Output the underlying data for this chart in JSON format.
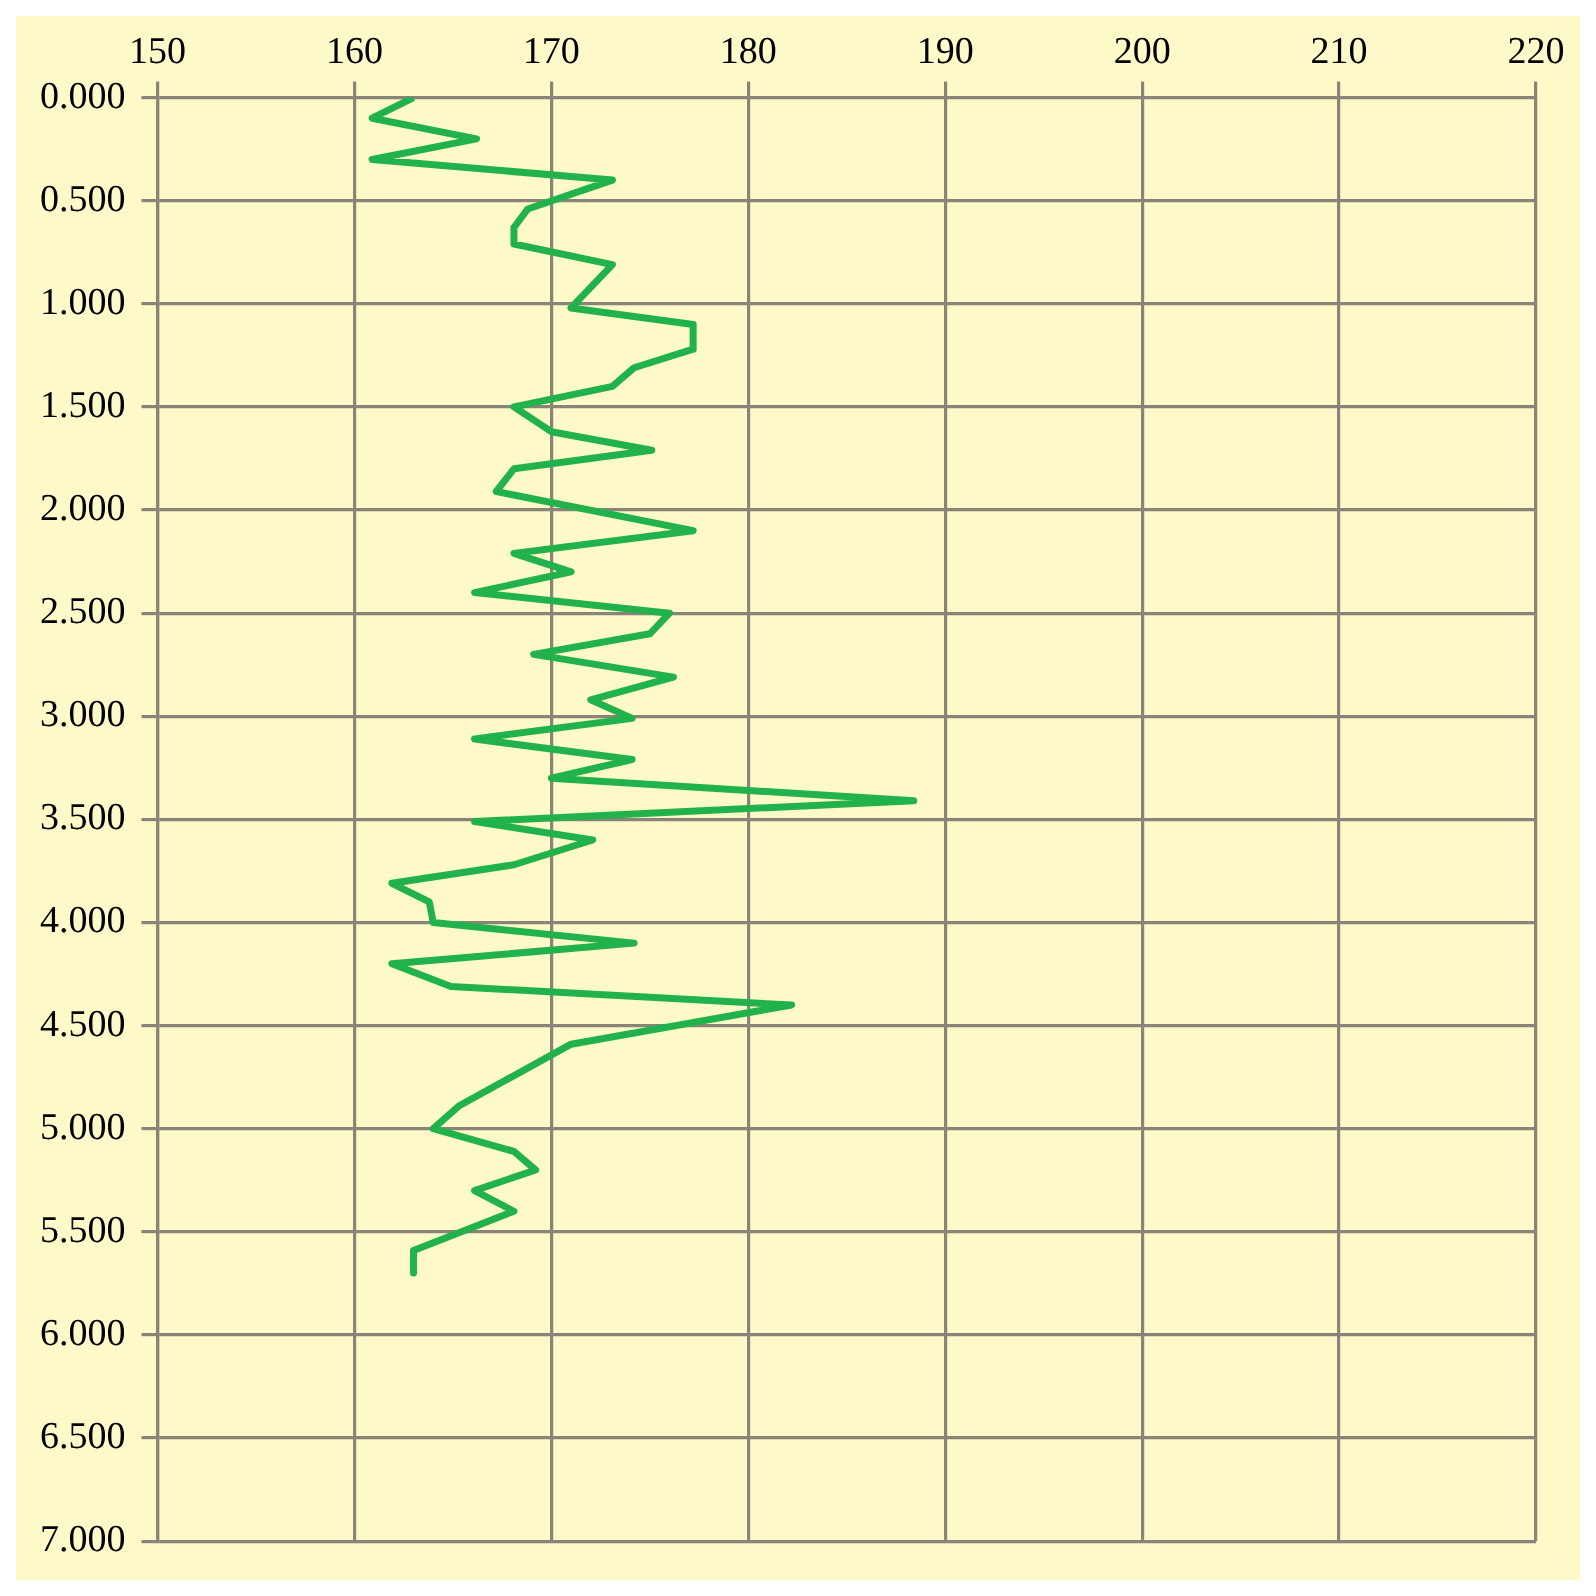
{
  "chart_data": {
    "type": "line",
    "x": [
      163.0,
      160.9,
      166.2,
      160.9,
      173.1,
      168.8,
      168.1,
      168.1,
      173.1,
      171.0,
      177.2,
      177.2,
      174.2,
      173.1,
      168.1,
      170.0,
      175.1,
      168.1,
      167.2,
      177.2,
      168.1,
      171.0,
      166.1,
      176.0,
      175.0,
      169.1,
      176.2,
      172.0,
      174.1,
      166.1,
      174.1,
      170.0,
      188.4,
      166.1,
      172.1,
      168.1,
      161.9,
      163.8,
      164.0,
      174.2,
      161.9,
      164.9,
      182.2,
      171.0,
      165.3,
      164.0,
      168.1,
      169.2,
      166.1,
      168.1,
      163.0,
      163.0
    ],
    "series": [
      {
        "color": "#22b24c",
        "values": [
          0.0,
          0.1,
          0.2,
          0.3,
          0.4,
          0.54,
          0.63,
          0.71,
          0.81,
          1.02,
          1.1,
          1.22,
          1.31,
          1.4,
          1.5,
          1.62,
          1.71,
          1.8,
          1.91,
          2.1,
          2.21,
          2.3,
          2.4,
          2.5,
          2.6,
          2.7,
          2.81,
          2.92,
          3.01,
          3.11,
          3.21,
          3.3,
          3.41,
          3.51,
          3.6,
          3.72,
          3.81,
          3.9,
          4.0,
          4.1,
          4.2,
          4.31,
          4.4,
          4.59,
          4.89,
          5.0,
          5.11,
          5.2,
          5.3,
          5.4,
          5.59,
          5.7
        ]
      }
    ],
    "xlim": [
      150,
      220
    ],
    "xticks": [
      150,
      160,
      170,
      180,
      190,
      200,
      210,
      220
    ],
    "ylim": [
      7,
      0
    ],
    "yticks": [
      {
        "value": 0,
        "label": "0.000"
      },
      {
        "value": 0.5,
        "label": "0.500"
      },
      {
        "value": 1,
        "label": "1.000"
      },
      {
        "value": 1.5,
        "label": "1.500"
      },
      {
        "value": 2,
        "label": "2.000"
      },
      {
        "value": 2.5,
        "label": "2.500"
      },
      {
        "value": 3,
        "label": "3.000"
      },
      {
        "value": 3.5,
        "label": "3.500"
      },
      {
        "value": 4,
        "label": "4.000"
      },
      {
        "value": 4.5,
        "label": "4.500"
      },
      {
        "value": 5,
        "label": "5.000"
      },
      {
        "value": 5.5,
        "label": "5.500"
      },
      {
        "value": 6,
        "label": "6.000"
      },
      {
        "value": 6.5,
        "label": "6.500"
      },
      {
        "value": 7,
        "label": "7.000"
      }
    ],
    "grid": true,
    "legend": false,
    "marker": "none",
    "line_style": "solid"
  }
}
